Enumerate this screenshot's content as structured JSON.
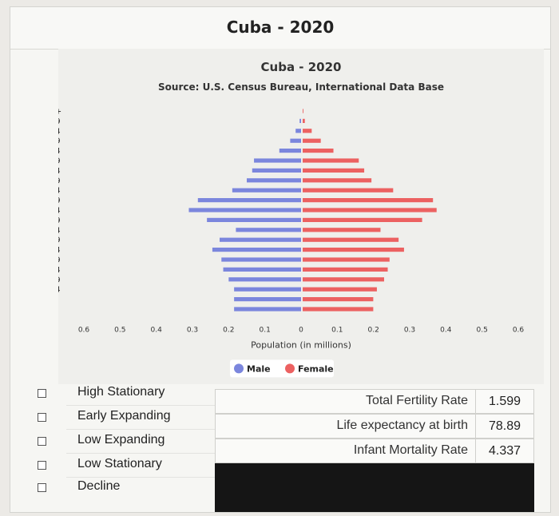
{
  "page_title": "Cuba - 2020",
  "chart_data": {
    "type": "bar",
    "orientation": "horizontal-population-pyramid",
    "title": "Cuba - 2020",
    "subtitle": "Source: U.S. Census Bureau, International Data Base",
    "xlabel": "Population (in millions)",
    "x_ticks": [
      "0.6",
      "0.5",
      "0.4",
      "0.3",
      "0.2",
      "0.1",
      "0",
      "0.1",
      "0.2",
      "0.3",
      "0.4",
      "0.5",
      "0.6"
    ],
    "xlim": [
      -0.6,
      0.6
    ],
    "categories": [
      "100 +",
      "95-99",
      "90-94",
      "85-89",
      "80-84",
      "75-79",
      "70-74",
      "65-69",
      "60-64",
      "55-59",
      "50-54",
      "45-49",
      "40-44",
      "35-39",
      "30-34",
      "25-29",
      "20-24",
      "15-19",
      "10-14",
      "5-9",
      "0-4"
    ],
    "series": [
      {
        "name": "Male",
        "color": "#7b86dd",
        "values": [
          0.0,
          0.004,
          0.015,
          0.03,
          0.06,
          0.13,
          0.135,
          0.15,
          0.19,
          0.285,
          0.31,
          0.26,
          0.18,
          0.225,
          0.245,
          0.22,
          0.215,
          0.2,
          0.185,
          0.185,
          0.185
        ]
      },
      {
        "name": "Female",
        "color": "#ec6161",
        "values": [
          0.002,
          0.006,
          0.025,
          0.05,
          0.085,
          0.155,
          0.17,
          0.19,
          0.25,
          0.36,
          0.37,
          0.33,
          0.215,
          0.265,
          0.28,
          0.24,
          0.235,
          0.225,
          0.205,
          0.195,
          0.195
        ]
      }
    ],
    "legend_position": "bottom",
    "grid": false
  },
  "options": [
    {
      "label": "High Stationary"
    },
    {
      "label": "Early Expanding"
    },
    {
      "label": "Low Expanding"
    },
    {
      "label": "Low Stationary"
    },
    {
      "label": "Decline"
    }
  ],
  "stats": [
    {
      "label": "Total Fertility Rate",
      "value": "1.599"
    },
    {
      "label": "Life expectancy at birth",
      "value": "78.89"
    },
    {
      "label": "Infant Mortality Rate",
      "value": "4.337"
    }
  ]
}
